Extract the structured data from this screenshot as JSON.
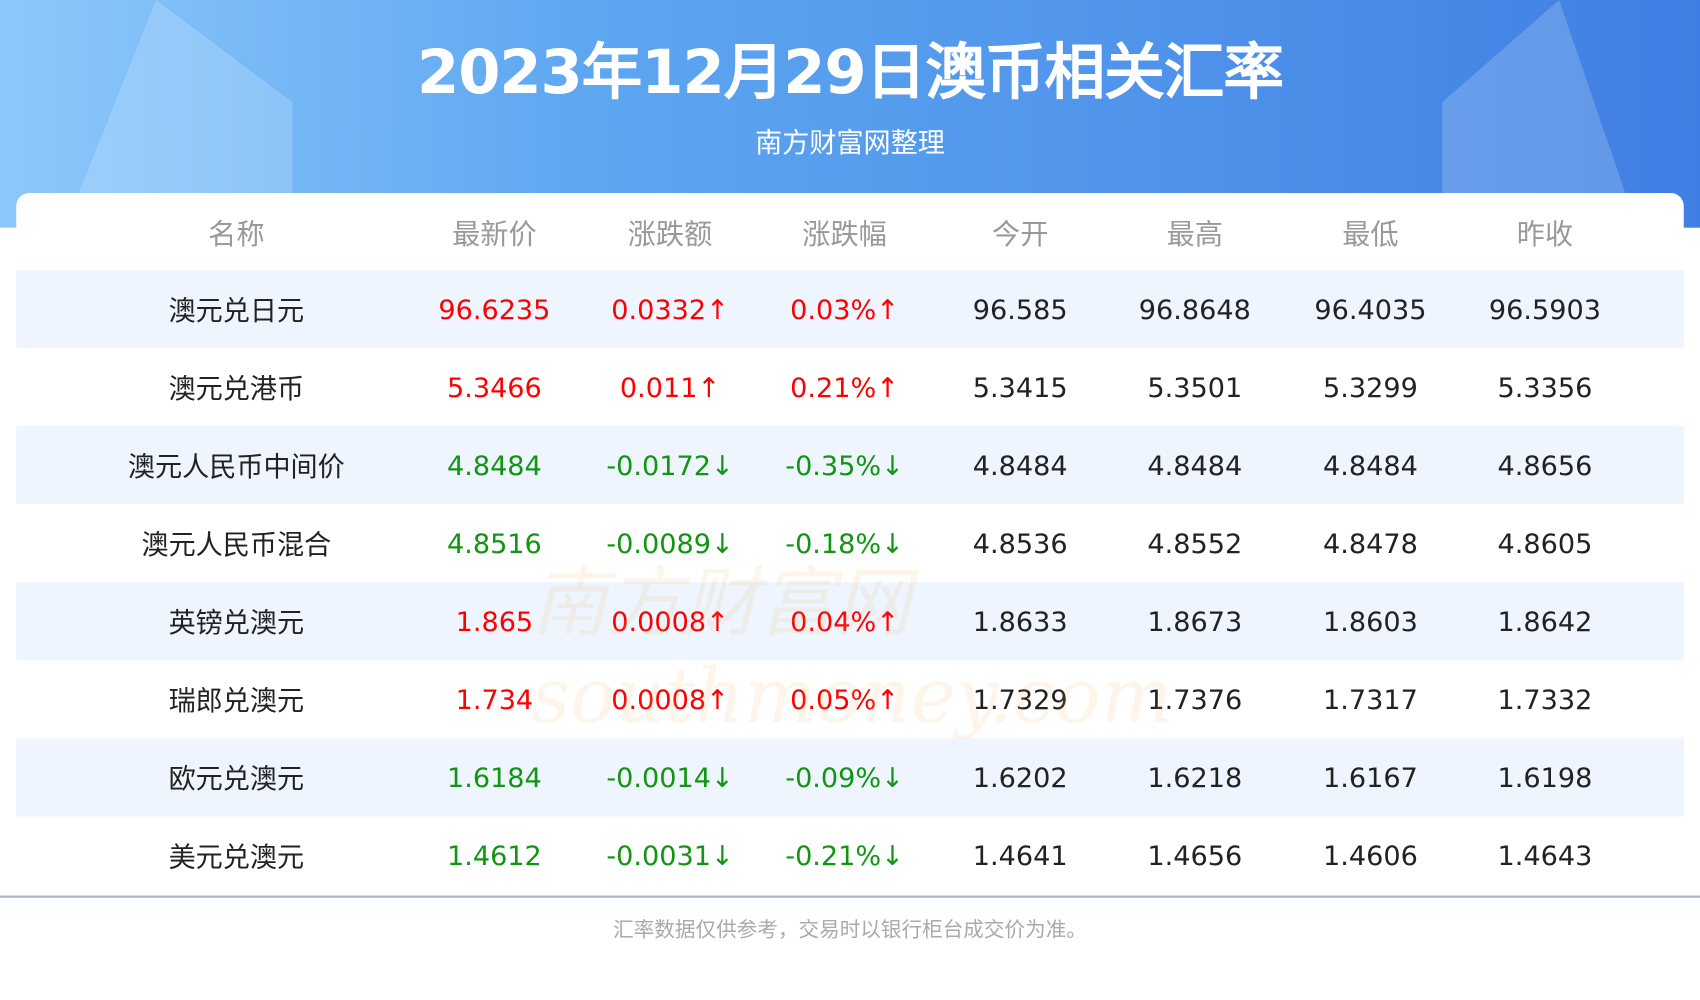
{
  "header": {
    "title": "2023年12月29日澳币相关汇率",
    "subtitle": "南方财富网整理"
  },
  "table": {
    "columns": [
      "名称",
      "最新价",
      "涨跌额",
      "涨跌幅",
      "今开",
      "最高",
      "最低",
      "昨收"
    ],
    "rows": [
      {
        "name": "澳元兑日元",
        "latest": "96.6235",
        "change": "0.0332↑",
        "pct": "0.03%↑",
        "open": "96.585",
        "high": "96.8648",
        "low": "96.4035",
        "prev": "96.5903",
        "dir": "up"
      },
      {
        "name": "澳元兑港币",
        "latest": "5.3466",
        "change": "0.011↑",
        "pct": "0.21%↑",
        "open": "5.3415",
        "high": "5.3501",
        "low": "5.3299",
        "prev": "5.3356",
        "dir": "up"
      },
      {
        "name": "澳元人民币中间价",
        "latest": "4.8484",
        "change": "-0.0172↓",
        "pct": "-0.35%↓",
        "open": "4.8484",
        "high": "4.8484",
        "low": "4.8484",
        "prev": "4.8656",
        "dir": "down"
      },
      {
        "name": "澳元人民币混合",
        "latest": "4.8516",
        "change": "-0.0089↓",
        "pct": "-0.18%↓",
        "open": "4.8536",
        "high": "4.8552",
        "low": "4.8478",
        "prev": "4.8605",
        "dir": "down"
      },
      {
        "name": "英镑兑澳元",
        "latest": "1.865",
        "change": "0.0008↑",
        "pct": "0.04%↑",
        "open": "1.8633",
        "high": "1.8673",
        "low": "1.8603",
        "prev": "1.8642",
        "dir": "up"
      },
      {
        "name": "瑞郎兑澳元",
        "latest": "1.734",
        "change": "0.0008↑",
        "pct": "0.05%↑",
        "open": "1.7329",
        "high": "1.7376",
        "low": "1.7317",
        "prev": "1.7332",
        "dir": "up"
      },
      {
        "name": "欧元兑澳元",
        "latest": "1.6184",
        "change": "-0.0014↓",
        "pct": "-0.09%↓",
        "open": "1.6202",
        "high": "1.6218",
        "low": "1.6167",
        "prev": "1.6198",
        "dir": "down"
      },
      {
        "name": "美元兑澳元",
        "latest": "1.4612",
        "change": "-0.0031↓",
        "pct": "-0.21%↓",
        "open": "1.4641",
        "high": "1.4656",
        "low": "1.4606",
        "prev": "1.4643",
        "dir": "down"
      }
    ]
  },
  "colors": {
    "up": "#ff0000",
    "down": "#129512",
    "row_alt": "#eef5fe"
  },
  "watermark": "南方财富网 southmoney.com",
  "footer": "汇率数据仅供参考，交易时以银行柜台成交价为准。"
}
